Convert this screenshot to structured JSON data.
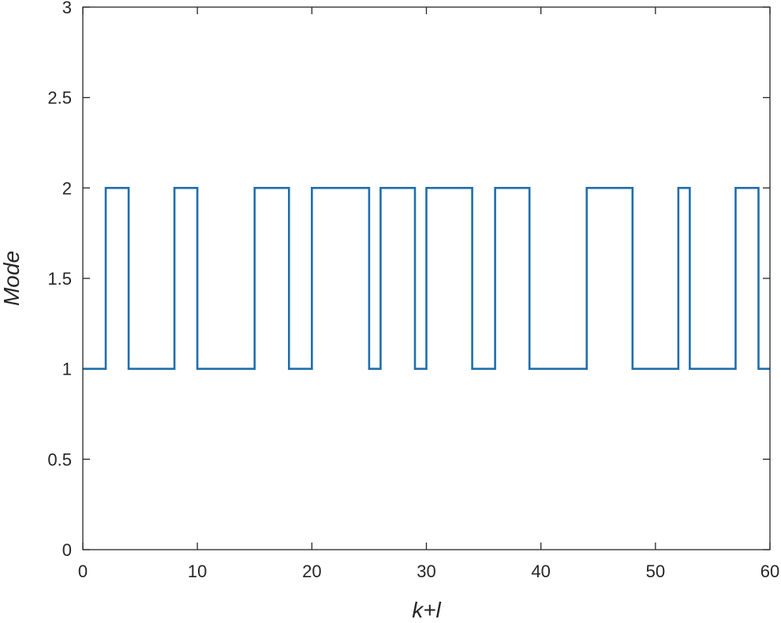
{
  "chart_data": {
    "type": "line",
    "step": "post",
    "title": "",
    "xlabel": "k+l",
    "ylabel": "Mode",
    "xlim": [
      0,
      60
    ],
    "ylim": [
      0,
      3
    ],
    "xticks": [
      0,
      10,
      20,
      30,
      40,
      50,
      60
    ],
    "xtick_labels": [
      "0",
      "10",
      "20",
      "30",
      "40",
      "50",
      "60"
    ],
    "yticks": [
      0,
      0.5,
      1,
      1.5,
      2,
      2.5,
      3
    ],
    "ytick_labels": [
      "0",
      "0.5",
      "1",
      "1.5",
      "2",
      "2.5",
      "3"
    ],
    "grid": false,
    "legend": "none",
    "series": [
      {
        "color": "#1f6ead",
        "x": [
          0,
          2,
          4,
          8,
          10,
          15,
          18,
          20,
          25,
          26,
          29,
          30,
          34,
          36,
          39,
          44,
          48,
          52,
          53,
          57,
          59,
          60
        ],
        "y": [
          1,
          2,
          1,
          2,
          1,
          2,
          1,
          2,
          1,
          2,
          1,
          2,
          1,
          2,
          1,
          2,
          1,
          2,
          1,
          2,
          1,
          1
        ]
      }
    ]
  }
}
